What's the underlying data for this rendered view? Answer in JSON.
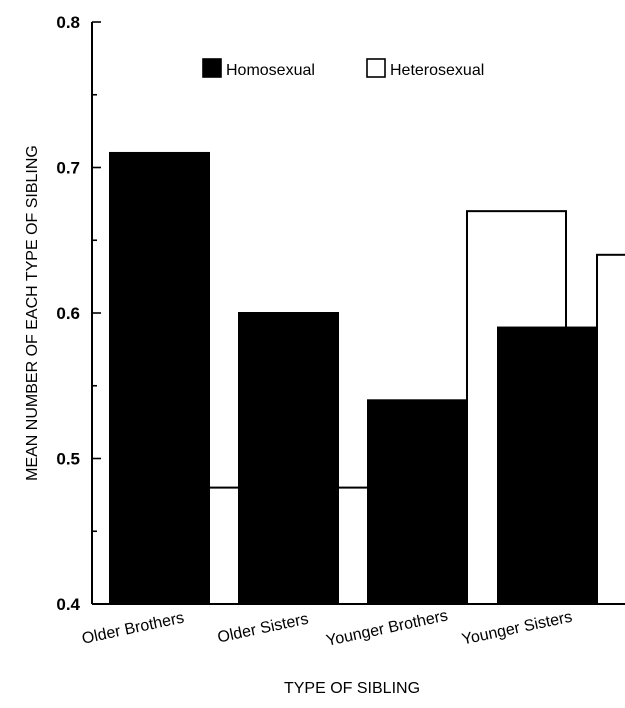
{
  "chart_data": {
    "type": "bar",
    "categories": [
      "Older Brothers",
      "Older Sisters",
      "Younger Brothers",
      "Younger Sisters"
    ],
    "series": [
      {
        "name": "Homosexual",
        "values": [
          0.71,
          0.6,
          0.54,
          0.59
        ],
        "color": "#000000"
      },
      {
        "name": "Heterosexual",
        "values": [
          0.48,
          0.48,
          0.67,
          0.64
        ],
        "color": "#ffffff"
      }
    ],
    "xlabel": "TYPE OF SIBLING",
    "ylabel": "MEAN NUMBER OF EACH TYPE OF SIBLING",
    "ylim": [
      0.4,
      0.8
    ],
    "yticks": [
      "0.4",
      "0.5",
      "0.6",
      "0.7",
      "0.8"
    ],
    "grid": false,
    "legend_position": "top-center"
  }
}
